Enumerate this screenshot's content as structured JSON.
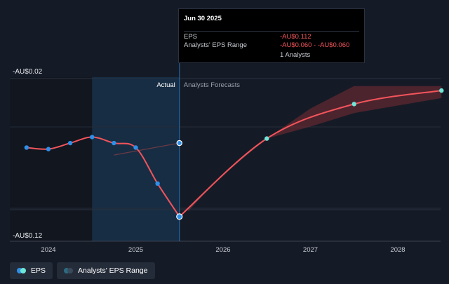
{
  "chart_data": {
    "type": "line",
    "y_axis": {
      "top_label": "-AU$0.02",
      "bottom_label": "-AU$0.12",
      "ylim": [
        -0.12,
        -0.02
      ]
    },
    "x_ticks": [
      "2024",
      "2025",
      "2026",
      "2027",
      "2028"
    ],
    "region_labels": {
      "actual": "Actual",
      "forecast": "Analysts Forecasts"
    },
    "eps_actual": [
      {
        "x": 2023.75,
        "y": -0.066
      },
      {
        "x": 2024.0,
        "y": -0.067
      },
      {
        "x": 2024.25,
        "y": -0.063
      },
      {
        "x": 2024.5,
        "y": -0.059
      },
      {
        "x": 2024.75,
        "y": -0.063
      },
      {
        "x": 2025.0,
        "y": -0.066
      },
      {
        "x": 2025.25,
        "y": -0.09
      },
      {
        "x": 2025.5,
        "y": -0.112
      }
    ],
    "eps_forecast": [
      {
        "x": 2025.5,
        "y": -0.112
      },
      {
        "x": 2026.5,
        "y": -0.06
      },
      {
        "x": 2027.5,
        "y": -0.037
      },
      {
        "x": 2028.5,
        "y": -0.028
      }
    ],
    "range_high": [
      {
        "x": 2026.5,
        "y": -0.06
      },
      {
        "x": 2027.5,
        "y": -0.025
      },
      {
        "x": 2028.5,
        "y": -0.025
      }
    ],
    "range_low": [
      {
        "x": 2026.5,
        "y": -0.06
      },
      {
        "x": 2027.5,
        "y": -0.043
      },
      {
        "x": 2028.5,
        "y": -0.033
      }
    ],
    "faint_trend": [
      {
        "x": 2024.75,
        "y": -0.071
      },
      {
        "x": 2025.5,
        "y": -0.063
      }
    ],
    "colors": {
      "eps_line": "#f2545b",
      "actual_marker": "#2f8fe8",
      "forecast_marker": "#6ee7d8",
      "range_fill": "#7a2b33",
      "highlight": "#1a3c5c",
      "background": "#151b26"
    }
  },
  "tooltip": {
    "date": "Jun 30 2025",
    "eps_label": "EPS",
    "eps_value": "-AU$0.112",
    "range_label": "Analysts' EPS Range",
    "range_value": "-AU$0.060 - -AU$0.060",
    "analysts": "1 Analysts"
  },
  "legend": [
    {
      "label": "EPS",
      "color_a": "#2f8fe8",
      "color_b": "#6ee7d8"
    },
    {
      "label": "Analysts' EPS Range",
      "color_a": "#2a6b83",
      "color_b": "#3a4a5a"
    }
  ]
}
